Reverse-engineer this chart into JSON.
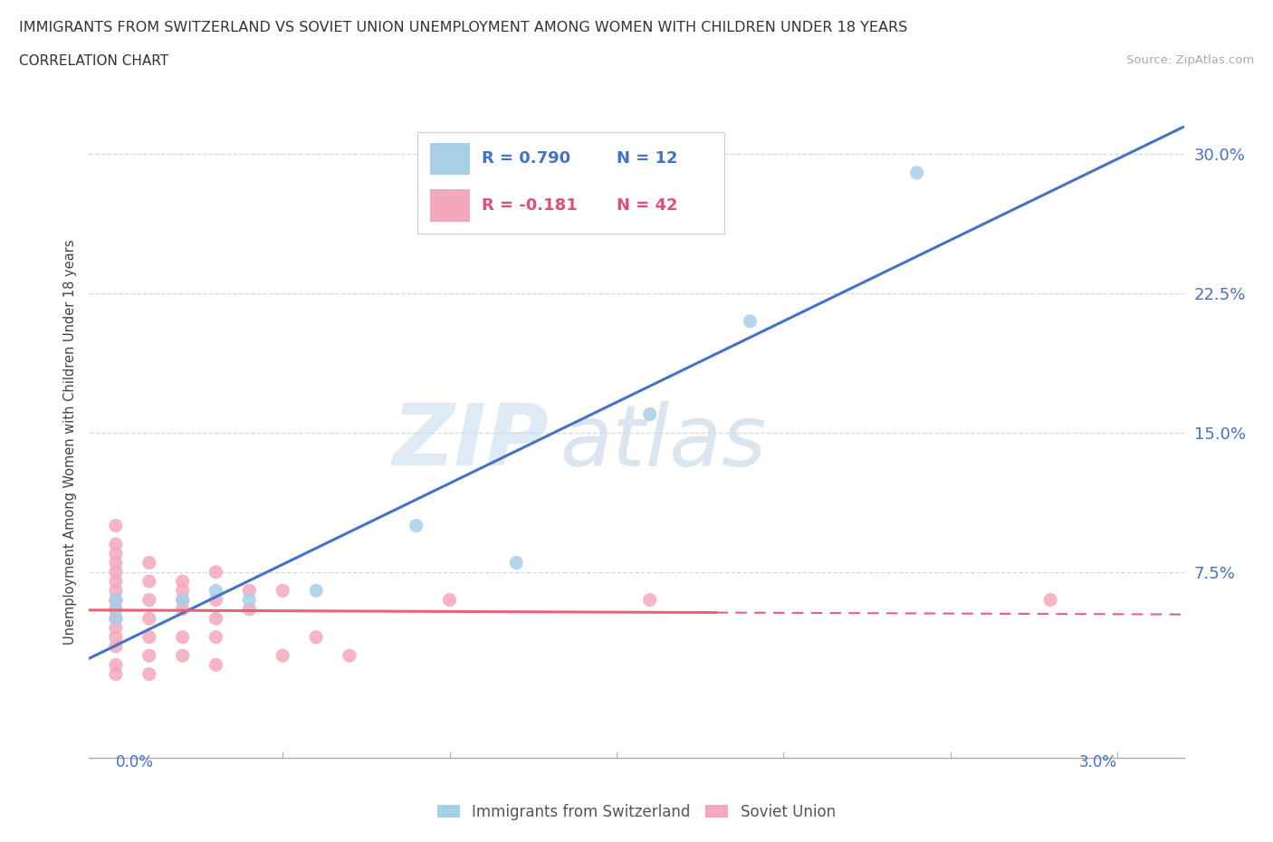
{
  "title": "IMMIGRANTS FROM SWITZERLAND VS SOVIET UNION UNEMPLOYMENT AMONG WOMEN WITH CHILDREN UNDER 18 YEARS",
  "subtitle": "CORRELATION CHART",
  "source": "Source: ZipAtlas.com",
  "ylabel": "Unemployment Among Women with Children Under 18 years",
  "y_ticks": [
    0.0,
    0.075,
    0.15,
    0.225,
    0.3
  ],
  "y_tick_labels": [
    "",
    "7.5%",
    "15.0%",
    "22.5%",
    "30.0%"
  ],
  "legend_switzerland": {
    "R": "0.790",
    "N": "12"
  },
  "legend_soviet": {
    "R": "-0.181",
    "N": "42"
  },
  "color_switzerland": "#a8cfe8",
  "color_soviet": "#f4a8bc",
  "trendline_switzerland_color": "#4472c4",
  "trendline_soviet_color": "#e8607a",
  "background_color": "#ffffff",
  "watermark_zip": "ZIP",
  "watermark_atlas": "atlas",
  "switzerland_points": [
    [
      0.0,
      0.05
    ],
    [
      0.0,
      0.055
    ],
    [
      0.0,
      0.06
    ],
    [
      0.002,
      0.06
    ],
    [
      0.003,
      0.065
    ],
    [
      0.004,
      0.06
    ],
    [
      0.006,
      0.065
    ],
    [
      0.009,
      0.1
    ],
    [
      0.012,
      0.08
    ],
    [
      0.016,
      0.16
    ],
    [
      0.019,
      0.21
    ],
    [
      0.024,
      0.29
    ]
  ],
  "soviet_points": [
    [
      0.0,
      0.1
    ],
    [
      0.0,
      0.09
    ],
    [
      0.0,
      0.085
    ],
    [
      0.0,
      0.08
    ],
    [
      0.0,
      0.075
    ],
    [
      0.0,
      0.07
    ],
    [
      0.0,
      0.065
    ],
    [
      0.0,
      0.06
    ],
    [
      0.0,
      0.055
    ],
    [
      0.0,
      0.05
    ],
    [
      0.0,
      0.045
    ],
    [
      0.0,
      0.04
    ],
    [
      0.0,
      0.035
    ],
    [
      0.0,
      0.025
    ],
    [
      0.0,
      0.02
    ],
    [
      0.001,
      0.08
    ],
    [
      0.001,
      0.07
    ],
    [
      0.001,
      0.06
    ],
    [
      0.001,
      0.05
    ],
    [
      0.001,
      0.04
    ],
    [
      0.001,
      0.03
    ],
    [
      0.001,
      0.02
    ],
    [
      0.002,
      0.07
    ],
    [
      0.002,
      0.065
    ],
    [
      0.002,
      0.06
    ],
    [
      0.002,
      0.055
    ],
    [
      0.002,
      0.04
    ],
    [
      0.002,
      0.03
    ],
    [
      0.003,
      0.075
    ],
    [
      0.003,
      0.06
    ],
    [
      0.003,
      0.05
    ],
    [
      0.003,
      0.04
    ],
    [
      0.003,
      0.025
    ],
    [
      0.004,
      0.065
    ],
    [
      0.004,
      0.055
    ],
    [
      0.005,
      0.065
    ],
    [
      0.005,
      0.03
    ],
    [
      0.006,
      0.04
    ],
    [
      0.007,
      0.03
    ],
    [
      0.01,
      0.06
    ],
    [
      0.016,
      0.06
    ],
    [
      0.028,
      0.06
    ]
  ],
  "xlim": [
    -0.0008,
    0.032
  ],
  "ylim": [
    -0.025,
    0.315
  ],
  "figsize": [
    14.06,
    9.3
  ],
  "dpi": 100
}
